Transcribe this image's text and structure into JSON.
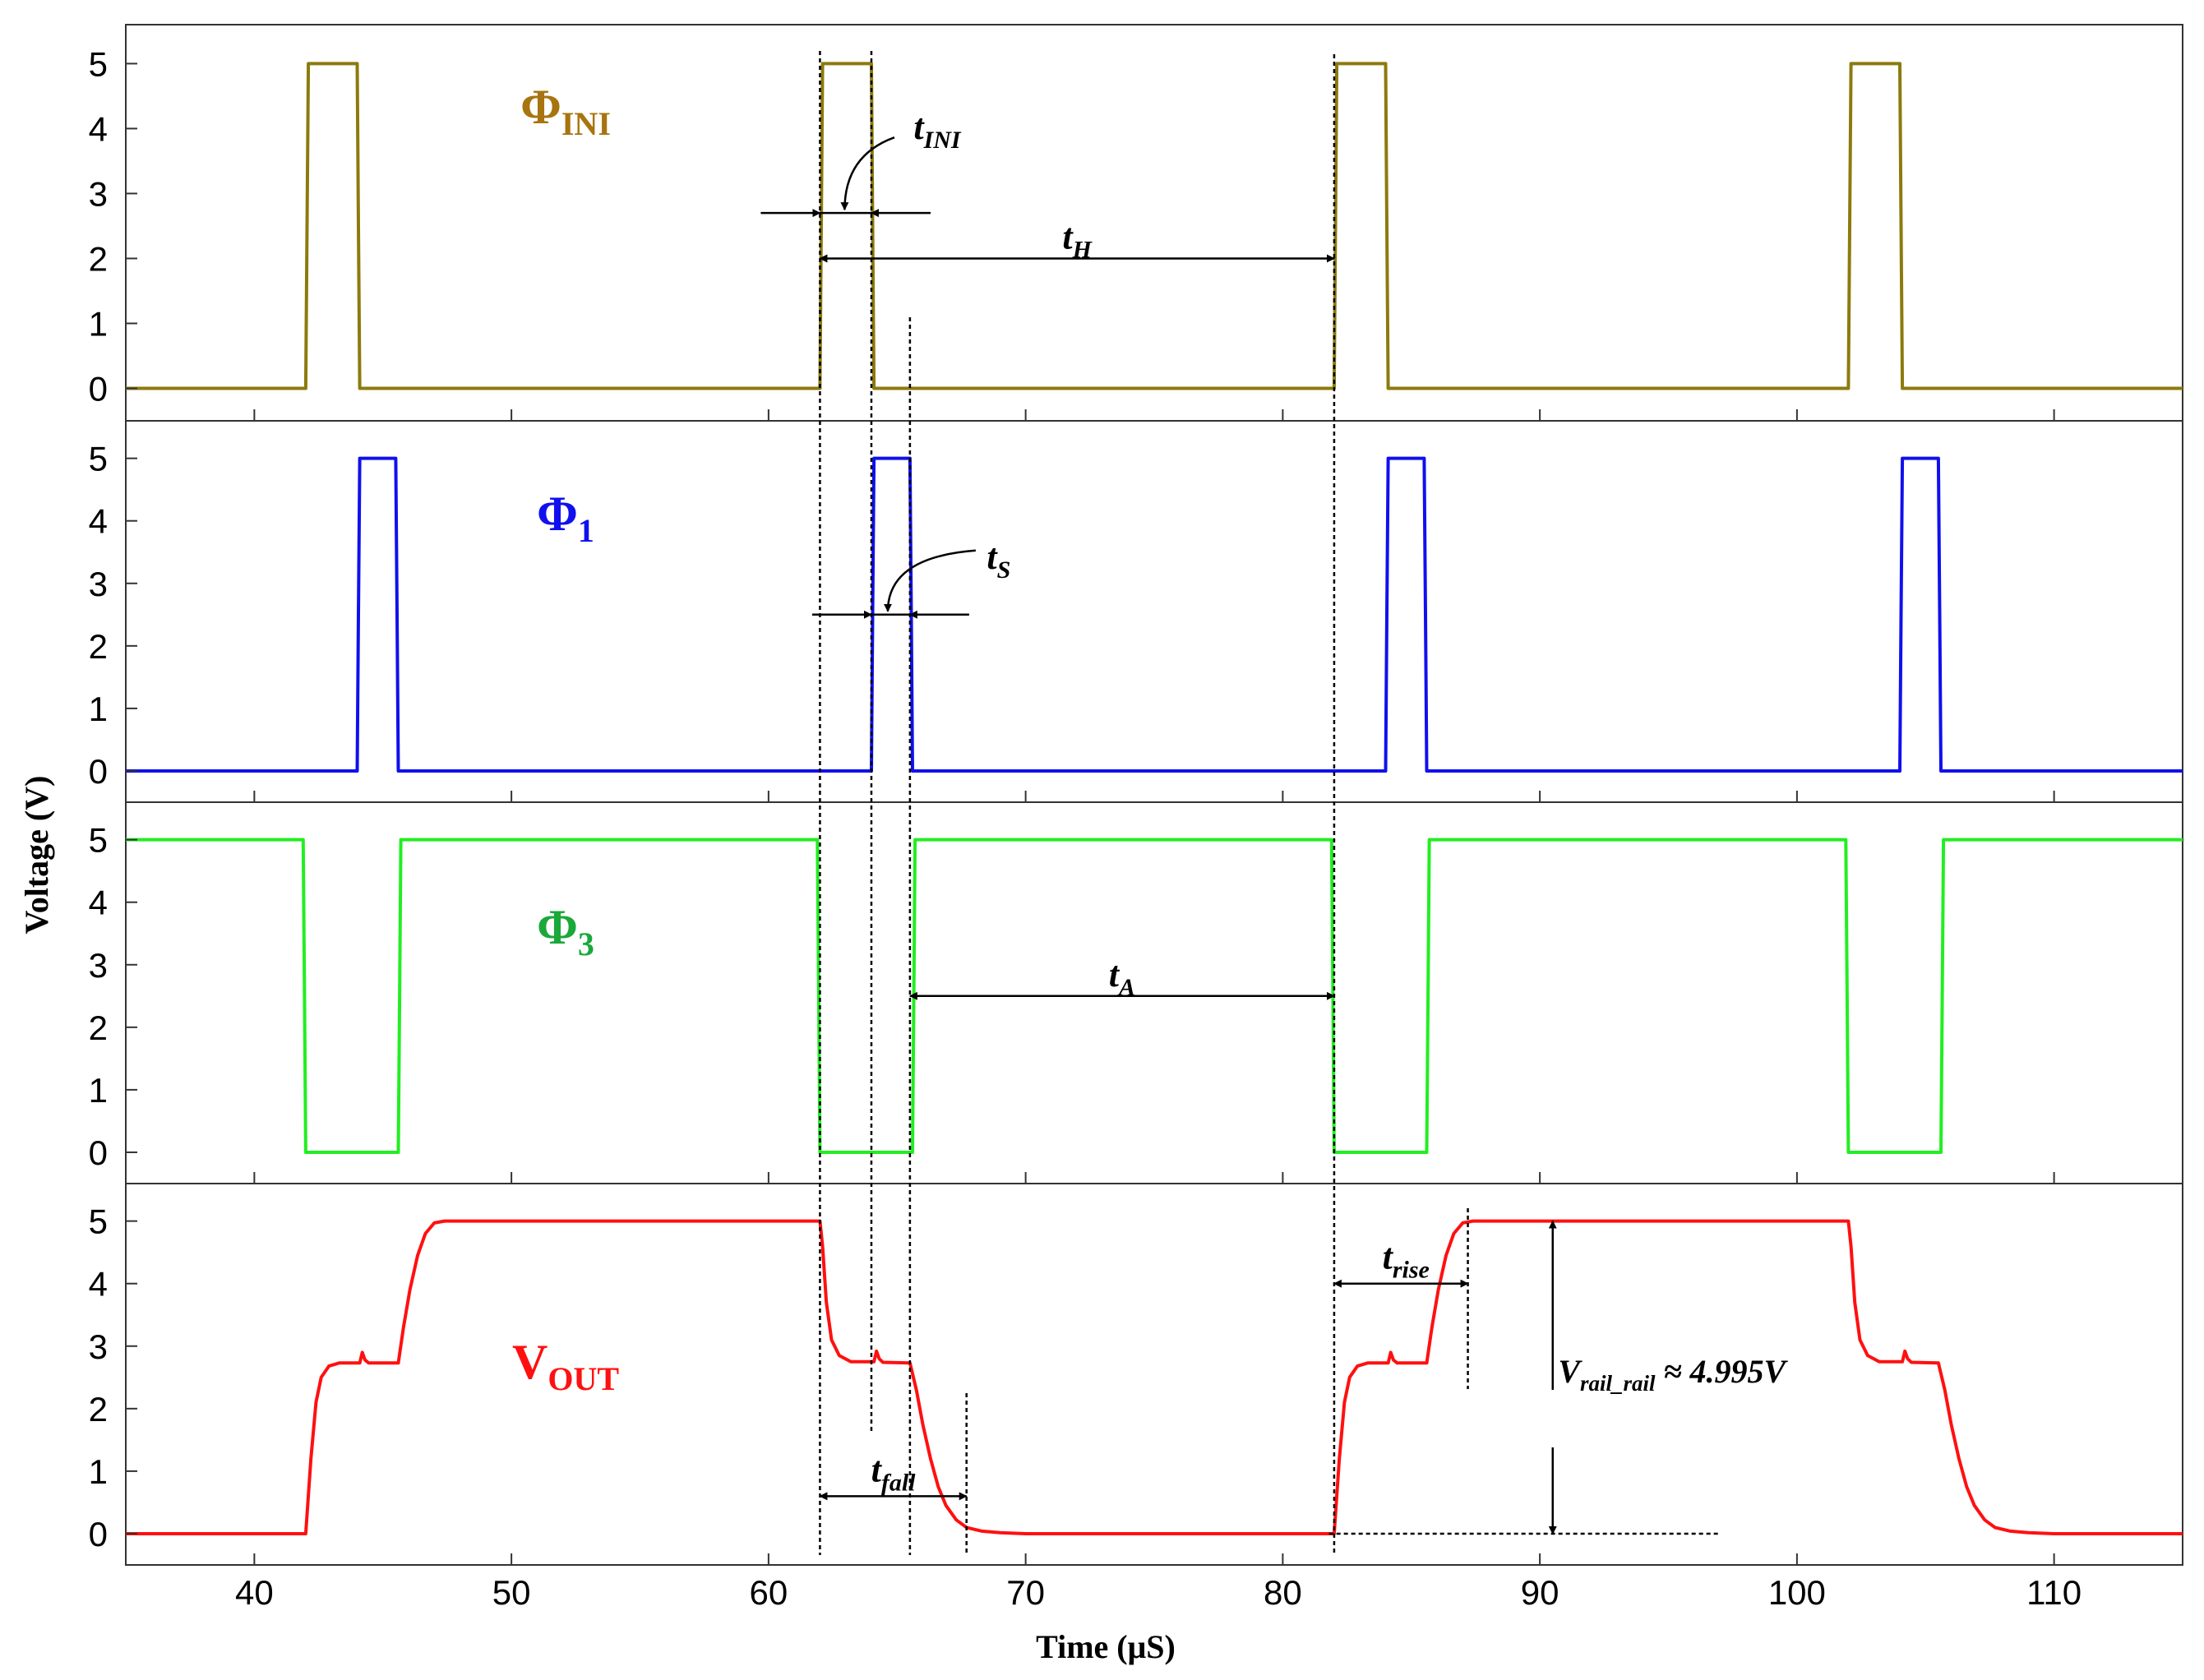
{
  "chart_data": {
    "type": "line",
    "xlabel": "Time (μS)",
    "ylabel": "Voltage (V)",
    "xlim": [
      35,
      115
    ],
    "ylim": [
      -0.5,
      5.6
    ],
    "xticks": [
      40,
      50,
      60,
      70,
      80,
      90,
      100,
      110
    ],
    "yticks": [
      0,
      1,
      2,
      3,
      4,
      5
    ],
    "panels": [
      {
        "id": "phi-ini",
        "label": {
          "main": "Φ",
          "sub": "INI"
        },
        "color": "#8c7a0e",
        "label_color": "#a8740f",
        "points": [
          [
            35,
            0
          ],
          [
            42,
            0
          ],
          [
            42.05,
            2.5
          ],
          [
            42.1,
            5
          ],
          [
            44,
            5
          ],
          [
            44.05,
            2.5
          ],
          [
            44.1,
            0
          ],
          [
            62,
            0
          ],
          [
            62.05,
            2.5
          ],
          [
            62.1,
            5
          ],
          [
            64,
            5
          ],
          [
            64.05,
            2.5
          ],
          [
            64.1,
            0
          ],
          [
            82,
            0
          ],
          [
            82.05,
            2.5
          ],
          [
            82.1,
            5
          ],
          [
            84,
            5
          ],
          [
            84.05,
            2.5
          ],
          [
            84.1,
            0
          ],
          [
            102,
            0
          ],
          [
            102.05,
            2.5
          ],
          [
            102.1,
            5
          ],
          [
            104,
            5
          ],
          [
            104.05,
            2.5
          ],
          [
            104.1,
            0
          ],
          [
            115,
            0
          ]
        ]
      },
      {
        "id": "phi-1",
        "label": {
          "main": "Φ",
          "sub": "1"
        },
        "color": "#1010ee",
        "label_color": "#1010ee",
        "points": [
          [
            35,
            0
          ],
          [
            44,
            0
          ],
          [
            44.05,
            2.5
          ],
          [
            44.1,
            5
          ],
          [
            45.5,
            5
          ],
          [
            45.55,
            2.5
          ],
          [
            45.6,
            0
          ],
          [
            64,
            0
          ],
          [
            64.05,
            2.5
          ],
          [
            64.1,
            5
          ],
          [
            65.5,
            5
          ],
          [
            65.55,
            2.5
          ],
          [
            65.6,
            0
          ],
          [
            84,
            0
          ],
          [
            84.05,
            2.5
          ],
          [
            84.1,
            5
          ],
          [
            85.5,
            5
          ],
          [
            85.55,
            2.5
          ],
          [
            85.6,
            0
          ],
          [
            104,
            0
          ],
          [
            104.05,
            2.5
          ],
          [
            104.1,
            5
          ],
          [
            105.5,
            5
          ],
          [
            105.55,
            2.5
          ],
          [
            105.6,
            0
          ],
          [
            115,
            0
          ]
        ]
      },
      {
        "id": "phi-3",
        "label": {
          "main": "Φ",
          "sub": "3"
        },
        "color": "#22ee22",
        "label_color": "#1aa83a",
        "points": [
          [
            35,
            5
          ],
          [
            41.9,
            5
          ],
          [
            41.95,
            2.5
          ],
          [
            42,
            0
          ],
          [
            45.6,
            0
          ],
          [
            45.65,
            2.5
          ],
          [
            45.7,
            5
          ],
          [
            61.9,
            5
          ],
          [
            61.95,
            2.5
          ],
          [
            62,
            0
          ],
          [
            65.6,
            0
          ],
          [
            65.65,
            2.5
          ],
          [
            65.7,
            5
          ],
          [
            81.9,
            5
          ],
          [
            81.95,
            2.5
          ],
          [
            82,
            0
          ],
          [
            85.6,
            0
          ],
          [
            85.65,
            2.5
          ],
          [
            85.7,
            5
          ],
          [
            101.9,
            5
          ],
          [
            101.95,
            2.5
          ],
          [
            102,
            0
          ],
          [
            105.6,
            0
          ],
          [
            105.65,
            2.5
          ],
          [
            105.7,
            5
          ],
          [
            115,
            5
          ]
        ]
      },
      {
        "id": "vout",
        "label": {
          "main": "V",
          "sub": "OUT"
        },
        "color": "#ff1010",
        "label_color": "#ff1010",
        "points": [
          [
            35,
            0
          ],
          [
            42,
            0
          ],
          [
            42.2,
            1.2
          ],
          [
            42.4,
            2.1
          ],
          [
            42.6,
            2.5
          ],
          [
            42.9,
            2.68
          ],
          [
            43.3,
            2.73
          ],
          [
            44.1,
            2.73
          ],
          [
            44.2,
            2.9
          ],
          [
            44.3,
            2.78
          ],
          [
            44.45,
            2.73
          ],
          [
            45.6,
            2.73
          ],
          [
            45.8,
            3.3
          ],
          [
            46.05,
            3.9
          ],
          [
            46.35,
            4.45
          ],
          [
            46.65,
            4.8
          ],
          [
            47,
            4.97
          ],
          [
            47.4,
            5
          ],
          [
            62,
            5
          ],
          [
            62.1,
            4.6
          ],
          [
            62.25,
            3.7
          ],
          [
            62.45,
            3.1
          ],
          [
            62.75,
            2.85
          ],
          [
            63.2,
            2.75
          ],
          [
            64.1,
            2.75
          ],
          [
            64.2,
            2.92
          ],
          [
            64.3,
            2.8
          ],
          [
            64.45,
            2.74
          ],
          [
            65.5,
            2.73
          ],
          [
            65.75,
            2.3
          ],
          [
            66.0,
            1.75
          ],
          [
            66.3,
            1.2
          ],
          [
            66.6,
            0.75
          ],
          [
            66.9,
            0.45
          ],
          [
            67.3,
            0.22
          ],
          [
            67.7,
            0.1
          ],
          [
            68.3,
            0.04
          ],
          [
            69,
            0.015
          ],
          [
            70,
            0
          ],
          [
            82,
            0
          ],
          [
            82.2,
            1.2
          ],
          [
            82.4,
            2.1
          ],
          [
            82.6,
            2.5
          ],
          [
            82.9,
            2.68
          ],
          [
            83.3,
            2.73
          ],
          [
            84.1,
            2.73
          ],
          [
            84.2,
            2.9
          ],
          [
            84.3,
            2.78
          ],
          [
            84.45,
            2.73
          ],
          [
            85.6,
            2.73
          ],
          [
            85.8,
            3.3
          ],
          [
            86.05,
            3.9
          ],
          [
            86.35,
            4.45
          ],
          [
            86.65,
            4.8
          ],
          [
            87,
            4.97
          ],
          [
            87.4,
            5
          ],
          [
            102,
            5
          ],
          [
            102.1,
            4.6
          ],
          [
            102.25,
            3.7
          ],
          [
            102.45,
            3.1
          ],
          [
            102.75,
            2.85
          ],
          [
            103.2,
            2.75
          ],
          [
            104.1,
            2.75
          ],
          [
            104.2,
            2.92
          ],
          [
            104.3,
            2.8
          ],
          [
            104.45,
            2.74
          ],
          [
            105.5,
            2.73
          ],
          [
            105.75,
            2.3
          ],
          [
            106.0,
            1.75
          ],
          [
            106.3,
            1.2
          ],
          [
            106.6,
            0.75
          ],
          [
            106.9,
            0.45
          ],
          [
            107.3,
            0.22
          ],
          [
            107.7,
            0.1
          ],
          [
            108.3,
            0.04
          ],
          [
            109,
            0.015
          ],
          [
            110,
            0
          ],
          [
            115,
            0
          ]
        ]
      }
    ],
    "annotations": {
      "t_ini": {
        "main": "t",
        "sub": "INI",
        "x_from": 62,
        "x_to": 64,
        "y": 2.7,
        "panel": 0
      },
      "t_h": {
        "main": "t",
        "sub": "H",
        "x_from": 62,
        "x_to": 82,
        "y": 2.0,
        "panel": 0
      },
      "t_s": {
        "main": "t",
        "sub": "S",
        "x_from": 64,
        "x_to": 65.5,
        "y": 2.5,
        "panel": 1
      },
      "t_a": {
        "main": "t",
        "sub": "A",
        "x_from": 65.5,
        "x_to": 82,
        "y": 2.5,
        "panel": 2
      },
      "t_fall": {
        "main": "t",
        "sub": "fall",
        "x_from": 62,
        "x_to": 67.7,
        "y": 0.6,
        "panel": 3
      },
      "t_rise": {
        "main": "t",
        "sub": "rise",
        "x_from": 82,
        "x_to": 87.2,
        "y": 4.0,
        "panel": 3
      },
      "v_rail": {
        "main": "V",
        "sub": "rail_rail",
        "suffix": " ≈ 4.995V",
        "x": 90.5,
        "y_from": 0,
        "y_to": 5,
        "panel": 3
      }
    },
    "guide_lines_x": [
      62,
      64,
      65.5,
      67.7,
      82,
      87.2
    ]
  }
}
